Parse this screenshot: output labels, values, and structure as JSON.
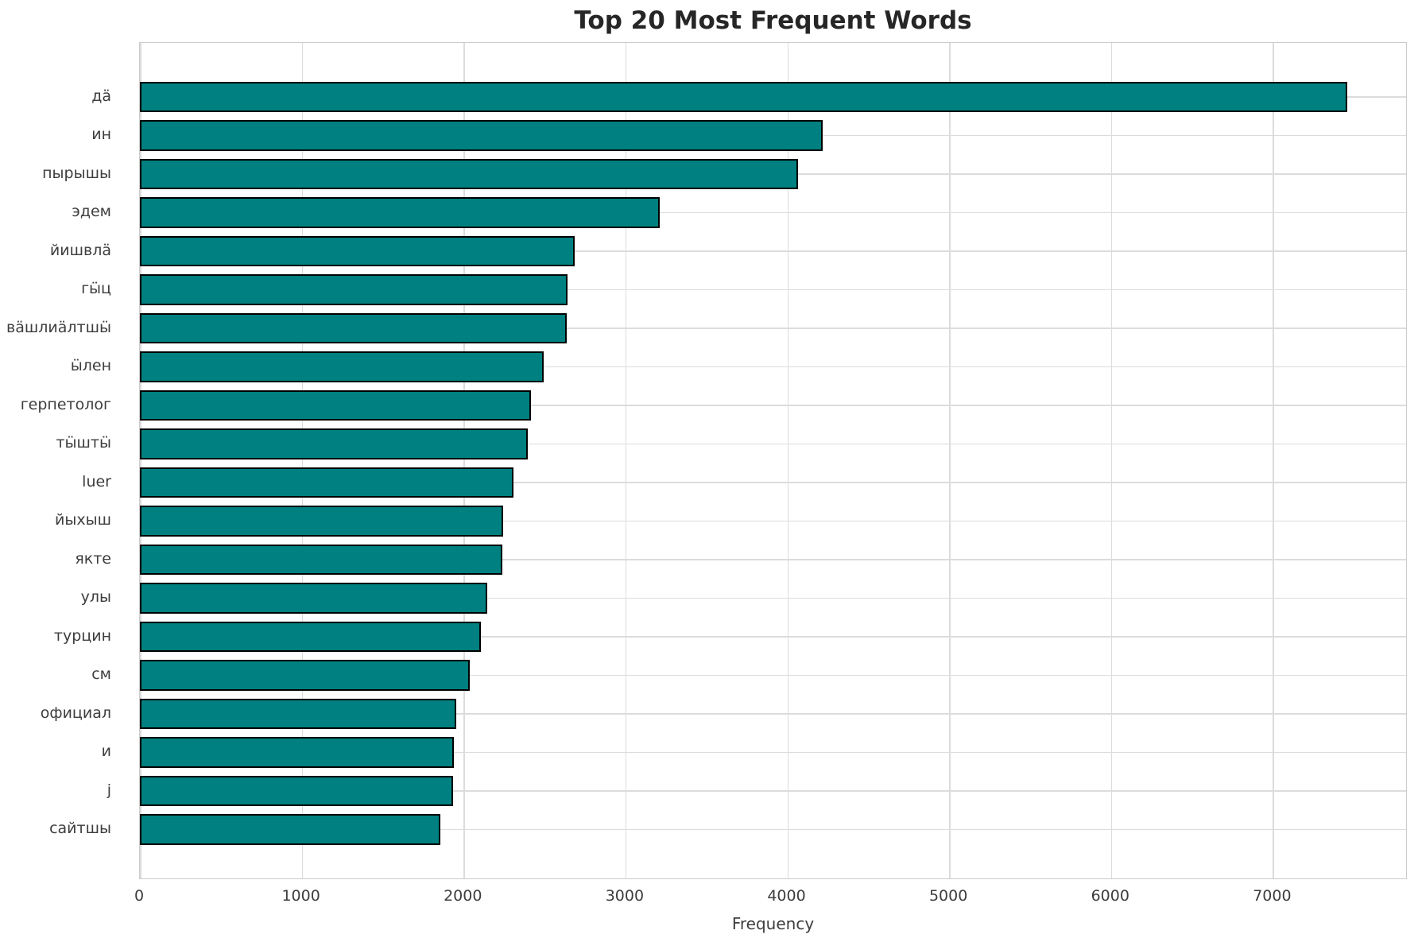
{
  "chart_data": {
    "type": "bar",
    "orientation": "horizontal",
    "title": "Top 20 Most Frequent Words",
    "xlabel": "Frequency",
    "ylabel": "",
    "categories": [
      "дӓ",
      "ин",
      "пырышы",
      "эдем",
      "йишвлӓ",
      "гӹц",
      "вӓшлиӓлтшӹ",
      "ӹлен",
      "герпетолог",
      "тӹштӹ",
      "luer",
      "йыхыш",
      "якте",
      "улы",
      "турцин",
      "см",
      "официал",
      "и",
      "j",
      "сайтшы"
    ],
    "values": [
      7460,
      4220,
      4065,
      3210,
      2685,
      2640,
      2635,
      2495,
      2415,
      2395,
      2310,
      2245,
      2240,
      2145,
      2105,
      2040,
      1955,
      1940,
      1935,
      1855
    ],
    "xlim": [
      0,
      7833
    ],
    "xticks": [
      0,
      1000,
      2000,
      3000,
      4000,
      5000,
      6000,
      7000
    ],
    "grid": true,
    "legend_position": "none",
    "colors": {
      "bar_fill": "#008080",
      "bar_edge": "#000000",
      "grid": "#dcdcdc",
      "spine": "#cccccc",
      "tick_text": "#3d3d3d",
      "title_text": "#262626",
      "background": "#ffffff"
    }
  }
}
